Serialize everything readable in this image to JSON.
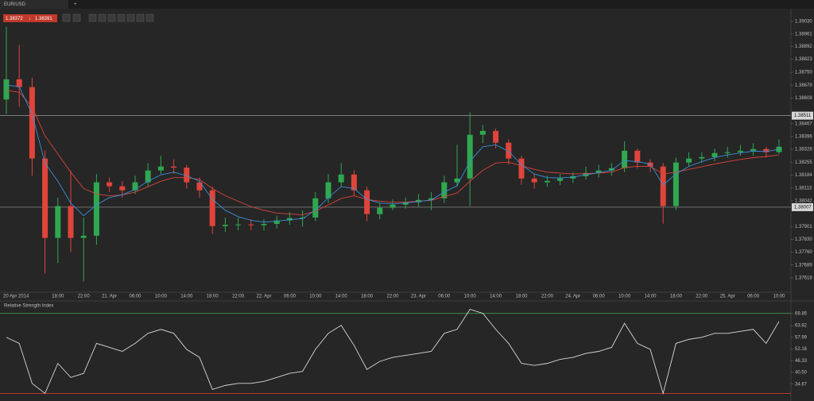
{
  "tab": "EUR/USD",
  "quote": {
    "bid": 1.38372,
    "ask": 1.38391
  },
  "chart_data": [
    {
      "type": "candlestick",
      "x_labels": [
        "20 Apr 2014",
        "18:00",
        "22:00",
        "21. Apr",
        "06:00",
        "10:00",
        "14:00",
        "18:00",
        "22:00",
        "22. Apr",
        "06:00",
        "10:00",
        "14:00",
        "18:00",
        "22:00",
        "23. Apr",
        "06:00",
        "10:00",
        "14:00",
        "18:00",
        "22:00",
        "24. Apr",
        "06:00",
        "10:00",
        "14:00",
        "18:00",
        "22:00",
        "25. Apr",
        "06:00",
        "10:00"
      ],
      "open": [
        1.386,
        1.38711,
        1.38668,
        1.38275,
        1.37838,
        1.38013,
        1.37838,
        1.3785,
        1.38144,
        1.38122,
        1.381,
        1.38144,
        1.38209,
        1.38231,
        1.38225,
        1.38144,
        1.381,
        1.37903,
        1.3791,
        1.37912,
        1.37908,
        1.37915,
        1.37934,
        1.37947,
        1.3795,
        1.38056,
        1.38144,
        1.38187,
        1.381,
        1.37969,
        1.38004,
        1.38021,
        1.38034,
        1.38047,
        1.38056,
        1.38144,
        1.38165,
        1.38406,
        1.38427,
        1.38362,
        1.38275,
        1.38165,
        1.38144,
        1.38152,
        1.38165,
        1.38178,
        1.38196,
        1.38209,
        1.38222,
        1.38318,
        1.38253,
        1.38231,
        1.38013,
        1.38253,
        1.38275,
        1.38283,
        1.38305,
        1.3831,
        1.38318,
        1.38327,
        1.3831
      ],
      "high": [
        1.39,
        1.389,
        1.3872,
        1.3832,
        1.3806,
        1.38209,
        1.3795,
        1.3819,
        1.3817,
        1.3815,
        1.3818,
        1.3825,
        1.3829,
        1.3827,
        1.3824,
        1.3817,
        1.3812,
        1.3795,
        1.3795,
        1.3794,
        1.3794,
        1.3796,
        1.3798,
        1.3799,
        1.3809,
        1.3819,
        1.3825,
        1.3821,
        1.3812,
        1.3803,
        1.3805,
        1.3806,
        1.3808,
        1.3809,
        1.3818,
        1.3835,
        1.3853,
        1.3846,
        1.3844,
        1.3838,
        1.3829,
        1.3819,
        1.3818,
        1.3819,
        1.382,
        1.3823,
        1.3824,
        1.3825,
        1.3837,
        1.3833,
        1.3827,
        1.3825,
        1.3828,
        1.3831,
        1.3831,
        1.3833,
        1.3834,
        1.3835,
        1.3836,
        1.3834,
        1.3838
      ],
      "low": [
        1.3852,
        1.3856,
        1.3818,
        1.37641,
        1.377,
        1.3776,
        1.37598,
        1.378,
        1.3809,
        1.3806,
        1.3808,
        1.3812,
        1.3819,
        1.3819,
        1.3811,
        1.3806,
        1.3786,
        1.3787,
        1.3788,
        1.3788,
        1.3788,
        1.3789,
        1.3791,
        1.379,
        1.3793,
        1.3803,
        1.3812,
        1.3807,
        1.3793,
        1.3794,
        1.3799,
        1.38,
        1.3801,
        1.3799,
        1.3803,
        1.3812,
        1.38013,
        1.3836,
        1.3833,
        1.3824,
        1.3813,
        1.3811,
        1.3812,
        1.3813,
        1.3814,
        1.3816,
        1.3817,
        1.3818,
        1.382,
        1.3822,
        1.382,
        1.37916,
        1.3799,
        1.3823,
        1.3825,
        1.3826,
        1.3828,
        1.3829,
        1.3829,
        1.3828,
        1.383
      ],
      "close": [
        1.38711,
        1.38668,
        1.38275,
        1.37838,
        1.38013,
        1.37838,
        1.3785,
        1.38144,
        1.38122,
        1.381,
        1.38144,
        1.38209,
        1.38231,
        1.38225,
        1.38144,
        1.381,
        1.37903,
        1.3791,
        1.37912,
        1.37908,
        1.37915,
        1.37934,
        1.37947,
        1.3795,
        1.38056,
        1.38144,
        1.38187,
        1.381,
        1.37969,
        1.38004,
        1.38021,
        1.38034,
        1.38047,
        1.38056,
        1.38144,
        1.38165,
        1.38406,
        1.38427,
        1.38362,
        1.38275,
        1.38165,
        1.38144,
        1.38152,
        1.38165,
        1.38178,
        1.38196,
        1.38209,
        1.38222,
        1.38318,
        1.38253,
        1.38231,
        1.38013,
        1.38253,
        1.38275,
        1.38283,
        1.38305,
        1.3831,
        1.38318,
        1.38327,
        1.3831,
        1.3834
      ],
      "up_color": "#2fa84f",
      "down_color": "#e0443a",
      "moving_averages": [
        {
          "color": "#d9443a",
          "values": [
            1.3865,
            1.3864,
            1.3856,
            1.384,
            1.383,
            1.382,
            1.3811,
            1.3808,
            1.3807,
            1.38075,
            1.3809,
            1.3812,
            1.3815,
            1.3817,
            1.3817,
            1.3816,
            1.3811,
            1.3807,
            1.3804,
            1.3801,
            1.3799,
            1.37975,
            1.3797,
            1.37965,
            1.37985,
            1.3802,
            1.38055,
            1.3807,
            1.3805,
            1.3804,
            1.38035,
            1.38035,
            1.3804,
            1.38045,
            1.38065,
            1.38085,
            1.3815,
            1.3821,
            1.3825,
            1.38255,
            1.38235,
            1.38215,
            1.382,
            1.38195,
            1.3819,
            1.38192,
            1.38195,
            1.382,
            1.38225,
            1.38232,
            1.38232,
            1.3819,
            1.382,
            1.38215,
            1.3823,
            1.38245,
            1.38258,
            1.3827,
            1.3828,
            1.38286,
            1.38295
          ]
        },
        {
          "color": "#3a8fd9",
          "values": [
            1.3868,
            1.3867,
            1.3852,
            1.3825,
            1.3815,
            1.3803,
            1.3796,
            1.3802,
            1.3806,
            1.38075,
            1.38105,
            1.3815,
            1.38185,
            1.382,
            1.3818,
            1.3815,
            1.3805,
            1.3799,
            1.37955,
            1.37935,
            1.37925,
            1.3793,
            1.37938,
            1.37944,
            1.3799,
            1.3806,
            1.3812,
            1.3811,
            1.3805,
            1.3803,
            1.38025,
            1.3803,
            1.38038,
            1.38047,
            1.3809,
            1.38125,
            1.3826,
            1.3834,
            1.3835,
            1.38315,
            1.3824,
            1.3819,
            1.3817,
            1.38168,
            1.38173,
            1.38185,
            1.38197,
            1.3821,
            1.38264,
            1.38258,
            1.38245,
            1.3813,
            1.3819,
            1.38232,
            1.38258,
            1.3828,
            1.38295,
            1.38306,
            1.38316,
            1.38313,
            1.38326
          ]
        }
      ],
      "price_lines": [
        1.38511,
        1.38007
      ],
      "ylim": [
        1.37539,
        1.39104
      ],
      "yticks": [
        {
          "value": 1.3903,
          "label": "1.39030"
        },
        1.38961,
        1.38892,
        1.38823,
        {
          "value": 1.3875,
          "label": "1.38750"
        },
        1.38679,
        1.38608,
        1.38467,
        1.38396,
        1.38326,
        1.38255,
        1.38184,
        1.38113,
        1.38042,
        1.37901,
        {
          "value": 1.3783,
          "label": "1.37830"
        },
        {
          "value": 1.3776,
          "label": "1.37760"
        },
        1.37689,
        1.37618
      ]
    },
    {
      "type": "line",
      "title": "Relative Strength Index",
      "color": "#d8d8d8",
      "values": [
        58,
        55,
        35,
        30,
        45,
        38,
        40,
        55,
        53,
        51,
        55,
        60,
        62,
        60,
        52,
        48,
        32,
        34,
        35,
        35,
        36,
        38,
        40,
        41,
        52,
        60,
        64,
        54,
        42,
        46,
        48,
        49,
        50,
        51,
        60,
        62,
        72,
        70,
        62,
        55,
        45,
        44,
        45,
        47,
        48,
        50,
        51,
        53,
        65,
        55,
        52,
        30,
        55,
        57,
        58,
        60,
        60,
        61,
        62,
        55,
        66
      ],
      "levels": [
        {
          "value": 70,
          "color": "#3d8a4a"
        },
        {
          "value": 30,
          "color": "#b8382f"
        }
      ],
      "ylim": [
        28.2,
        73.8
      ],
      "yticks": [
        69.85,
        63.82,
        57.99,
        52.16,
        46.33,
        {
          "value": 40.5,
          "label": "40.50"
        },
        34.67
      ]
    }
  ]
}
